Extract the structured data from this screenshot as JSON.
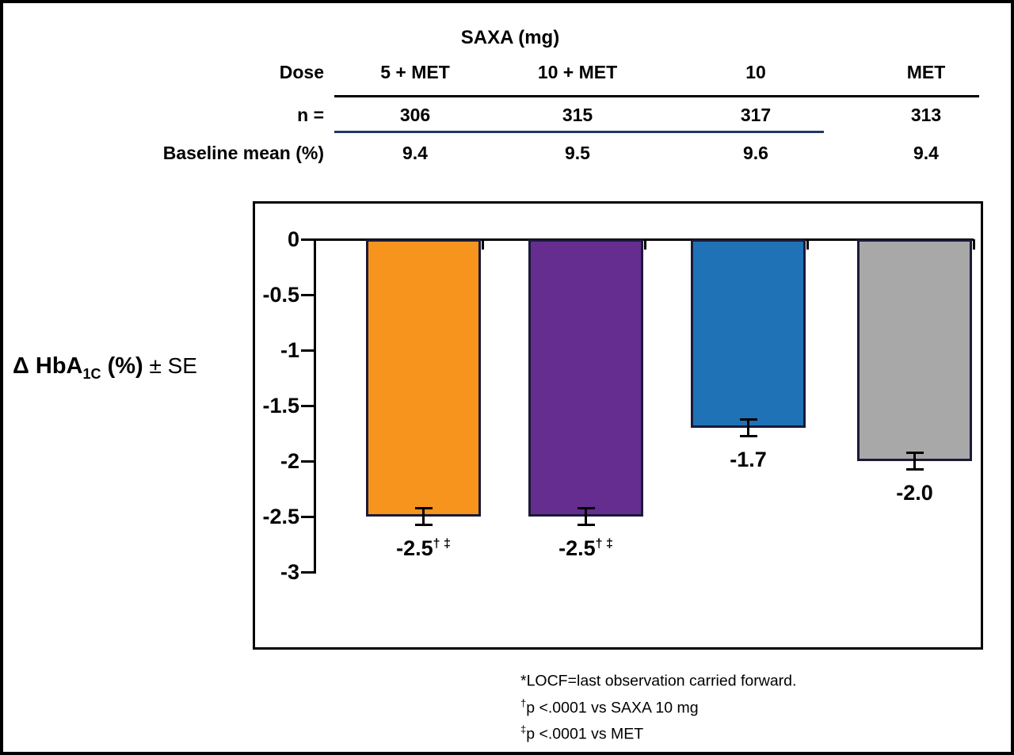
{
  "table": {
    "title": "SAXA (mg)",
    "row_labels": {
      "dose": "Dose",
      "n": "n =",
      "baseline": "Baseline mean (%)"
    },
    "columns": [
      {
        "dose": "5 + MET",
        "n": "306",
        "baseline": "9.4"
      },
      {
        "dose": "10 + MET",
        "n": "315",
        "baseline": "9.5"
      },
      {
        "dose": "10",
        "n": "317",
        "baseline": "9.6"
      },
      {
        "dose": "MET",
        "n": "313",
        "baseline": "9.4"
      }
    ]
  },
  "chart_data": {
    "type": "bar",
    "group_header": "SAXA (mg)",
    "categories": [
      "5 + MET",
      "10 + MET",
      "10",
      "MET"
    ],
    "values": [
      -2.5,
      -2.5,
      -1.7,
      -2.0
    ],
    "errors": [
      0.08,
      0.08,
      0.08,
      0.08
    ],
    "bar_labels": [
      "-2.5",
      "-2.5",
      "-1.7",
      "-2.0"
    ],
    "bar_label_marks": [
      "† ‡",
      "† ‡",
      "",
      ""
    ],
    "colors": [
      "#F7941E",
      "#662D91",
      "#1F72B5",
      "#A8A8A8"
    ],
    "bar_border_color": "#1A1A38",
    "ylabel": "Δ HbA1C (%) ± SE",
    "ylabel_parts": {
      "prefix": "Δ HbA",
      "sub": "1C",
      "mid": " (%)",
      "suffix": " ± SE"
    },
    "ylim": [
      -3,
      0
    ],
    "yticks": [
      0,
      -0.5,
      -1,
      -1.5,
      -2,
      -2.5,
      -3
    ],
    "ytick_labels": [
      "0",
      "-0.5",
      "-1",
      "-1.5",
      "-2",
      "-2.5",
      "-3"
    ],
    "grid": false,
    "legend": "none"
  },
  "footnotes": [
    {
      "marker": "",
      "text": "*LOCF=last observation carried forward."
    },
    {
      "marker": "†",
      "text": "p <.0001 vs SAXA 10 mg"
    },
    {
      "marker": "‡",
      "text": "p <.0001 vs MET"
    }
  ]
}
